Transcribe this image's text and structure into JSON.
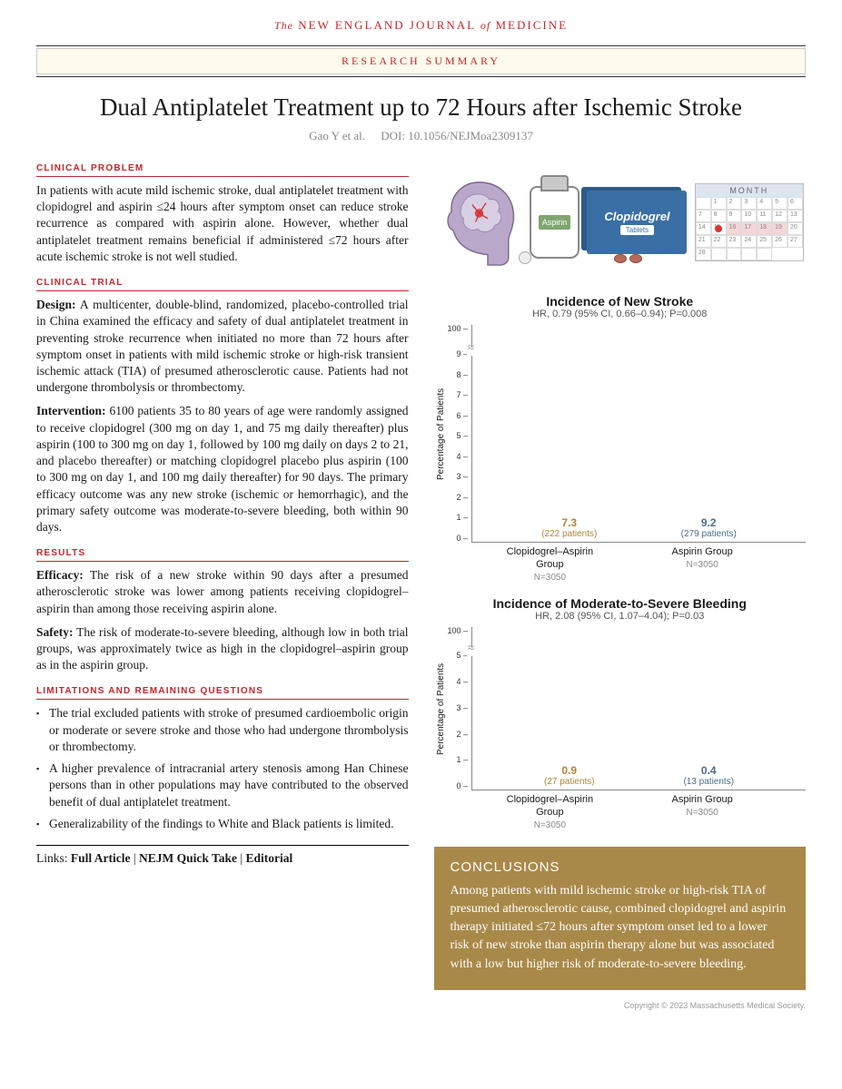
{
  "journal": {
    "the": "The",
    "name1": "NEW ENGLAND JOURNAL",
    "of": "of",
    "name2": "MEDICINE"
  },
  "summary_label": "RESEARCH SUMMARY",
  "title": "Dual Antiplatelet Treatment up to 72 Hours after Ischemic Stroke",
  "authors": "Gao Y et al.",
  "doi": "DOI: 10.1056/NEJMoa2309137",
  "sections": {
    "clinical_problem": {
      "head": "CLINICAL PROBLEM",
      "text": "In patients with acute mild ischemic stroke, dual antiplatelet treatment with clopidogrel and aspirin ≤24 hours after symptom onset can reduce stroke recurrence as compared with aspirin alone. However, whether dual antiplatelet treatment remains beneficial if administered ≤72 hours after acute ischemic stroke is not well studied."
    },
    "clinical_trial": {
      "head": "CLINICAL TRIAL",
      "design_label": "Design:",
      "design": "A multicenter, double-blind, randomized, placebo-controlled trial in China examined the efficacy and safety of dual antiplatelet treatment in preventing stroke recurrence when initiated no more than 72 hours after symptom onset in patients with mild ischemic stroke or high-risk transient ischemic attack (TIA) of presumed atherosclerotic cause. Patients had not undergone thrombolysis or thrombectomy.",
      "intervention_label": "Intervention:",
      "intervention": "6100 patients 35 to 80 years of age were randomly assigned to receive clopidogrel (300 mg on day 1, and 75 mg daily thereafter) plus aspirin (100 to 300 mg on day 1, followed by 100 mg daily on days 2 to 21, and placebo thereafter) or matching clopidogrel placebo plus aspirin (100 to 300 mg on day 1, and 100 mg daily thereafter) for 90 days. The primary efficacy outcome was any new stroke (ischemic or hemorrhagic), and the primary safety outcome was moderate-to-severe bleeding, both within 90 days."
    },
    "results": {
      "head": "RESULTS",
      "efficacy_label": "Efficacy:",
      "efficacy": "The risk of a new stroke within 90 days after a presumed atherosclerotic stroke was lower among patients receiving clopidogrel–aspirin than among those receiving aspirin alone.",
      "safety_label": "Safety:",
      "safety": "The risk of moderate-to-severe bleeding, although low in both trial groups, was approximately twice as high in the clopidogrel–aspirin group as in the aspirin group."
    },
    "limitations": {
      "head": "LIMITATIONS AND REMAINING QUESTIONS",
      "items": [
        "The trial excluded patients with stroke of presumed cardioembolic origin or moderate or severe stroke and those who had undergone thrombolysis or thrombectomy.",
        "A higher prevalence of intracranial artery stenosis among Han Chinese persons than in other populations may have contributed to the observed benefit of dual antiplatelet treatment.",
        "Generalizability of the findings to White and Black patients is limited."
      ]
    }
  },
  "links": {
    "label": "Links:",
    "items": [
      "Full Article",
      "NEJM Quick Take",
      "Editorial"
    ]
  },
  "hero": {
    "aspirin_label": "Aspirin",
    "box_label1": "Clopidogrel",
    "box_label2": "Tablets",
    "calendar_label": "MONTH",
    "calendar_days": [
      "",
      "1",
      "2",
      "3",
      "4",
      "5",
      "6",
      "7",
      "8",
      "9",
      "10",
      "11",
      "12",
      "13",
      "14",
      "15",
      "16",
      "17",
      "18",
      "19",
      "20",
      "21",
      "22",
      "23",
      "24",
      "25",
      "26",
      "27",
      "28",
      "",
      "",
      "",
      ""
    ],
    "highlight_start": 16,
    "highlight_end": 19,
    "dot_day": 15
  },
  "chart1": {
    "type": "bar",
    "title": "Incidence of New Stroke",
    "subtitle": "HR, 0.79 (95% CI, 0.66–0.94); P=0.008",
    "ylabel": "Percentage of Patients",
    "y_ticks_upper": [
      "100"
    ],
    "y_ticks_lower": [
      "9",
      "8",
      "7",
      "6",
      "5",
      "4",
      "3",
      "2",
      "1",
      "0"
    ],
    "break_pct_from_top": 8,
    "lower_max": 9.5,
    "bars": [
      {
        "label": "Clopidogrel–Aspirin Group",
        "n": "N=3050",
        "value": "7.3",
        "patients": "(222 patients)",
        "color": "#b89b62",
        "text_color": "#b38336",
        "height_pct": 70
      },
      {
        "label": "Aspirin Group",
        "n": "N=3050",
        "value": "9.2",
        "patients": "(279 patients)",
        "color": "#6f8aa0",
        "text_color": "#4a6d8c",
        "height_pct": 88
      }
    ],
    "background": "#ffffff"
  },
  "chart2": {
    "type": "bar",
    "title": "Incidence of Moderate-to-Severe Bleeding",
    "subtitle": "HR, 2.08 (95% CI, 1.07–4.04); P=0.03",
    "ylabel": "Percentage of Patients",
    "y_ticks_upper": [
      "100"
    ],
    "y_ticks_lower": [
      "5",
      "4",
      "3",
      "2",
      "1",
      "0"
    ],
    "break_pct_from_top": 10,
    "lower_max": 5,
    "bars": [
      {
        "label": "Clopidogrel–Aspirin Group",
        "n": "N=3050",
        "value": "0.9",
        "patients": "(27 patients)",
        "color": "#b89b62",
        "text_color": "#b38336",
        "height_pct": 16
      },
      {
        "label": "Aspirin Group",
        "n": "N=3050",
        "value": "0.4",
        "patients": "(13 patients)",
        "color": "#6f8aa0",
        "text_color": "#4a6d8c",
        "height_pct": 7
      }
    ],
    "background": "#ffffff"
  },
  "conclusions": {
    "head": "CONCLUSIONS",
    "text": "Among patients with mild ischemic stroke or high-risk TIA of presumed atherosclerotic cause, combined clopidogrel and aspirin therapy initiated ≤72 hours after symptom onset led to a lower risk of new stroke than aspirin therapy alone but was associated with a low but higher risk of moderate-to-severe bleeding.",
    "bg": "#a9894a"
  },
  "footer": "Copyright © 2023 Massachusetts Medical Society."
}
